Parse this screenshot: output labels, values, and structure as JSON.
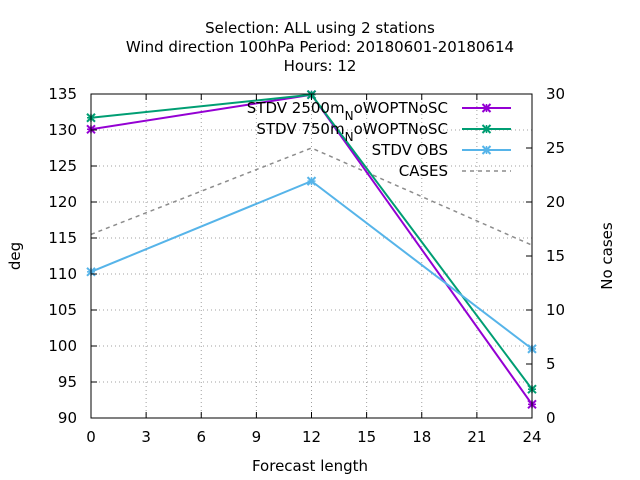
{
  "chart_data": {
    "type": "line",
    "title_lines": [
      "Selection: ALL using     2 stations",
      "Wind direction 100hPa   Period: 20180601-20180614",
      "Hours:  12"
    ],
    "xlabel": "Forecast length",
    "ylabel": "deg",
    "y2label": "No cases",
    "x_ticks": [
      "0",
      "3",
      "6",
      "9",
      "12",
      "15",
      "18",
      "21",
      "24"
    ],
    "y_ticks": [
      "90",
      "95",
      "100",
      "105",
      "110",
      "115",
      "120",
      "125",
      "130",
      "135"
    ],
    "y2_ticks": [
      "0",
      "5",
      "10",
      "15",
      "20",
      "25",
      "30"
    ],
    "xlim": [
      0,
      24
    ],
    "ylim": [
      90,
      135
    ],
    "y2lim": [
      0,
      30
    ],
    "grid": true,
    "legend_position": "top-right",
    "x": [
      0,
      12,
      24
    ],
    "series": [
      {
        "name": "STDV 2500m",
        "name_sub": "N",
        "name_tail": "oWOPTNoSC",
        "axis": "y",
        "color": "#9400d3",
        "marker": "x",
        "dashed": false,
        "values": [
          130.1,
          134.9,
          91.9
        ]
      },
      {
        "name": "STDV 750m",
        "name_sub": "N",
        "name_tail": "oWOPTNoSC",
        "axis": "y",
        "color": "#009e73",
        "marker": "x",
        "dashed": false,
        "values": [
          131.7,
          134.9,
          94.0
        ]
      },
      {
        "name": "STDV OBS",
        "name_sub": "",
        "name_tail": "",
        "axis": "y",
        "color": "#56b4e9",
        "marker": "x",
        "dashed": false,
        "values": [
          110.3,
          122.9,
          99.6
        ]
      },
      {
        "name": "CASES",
        "name_sub": "",
        "name_tail": "",
        "axis": "y2",
        "color": "#8c8c8c",
        "marker": "none",
        "dashed": true,
        "values": [
          17,
          25,
          16
        ]
      }
    ]
  }
}
